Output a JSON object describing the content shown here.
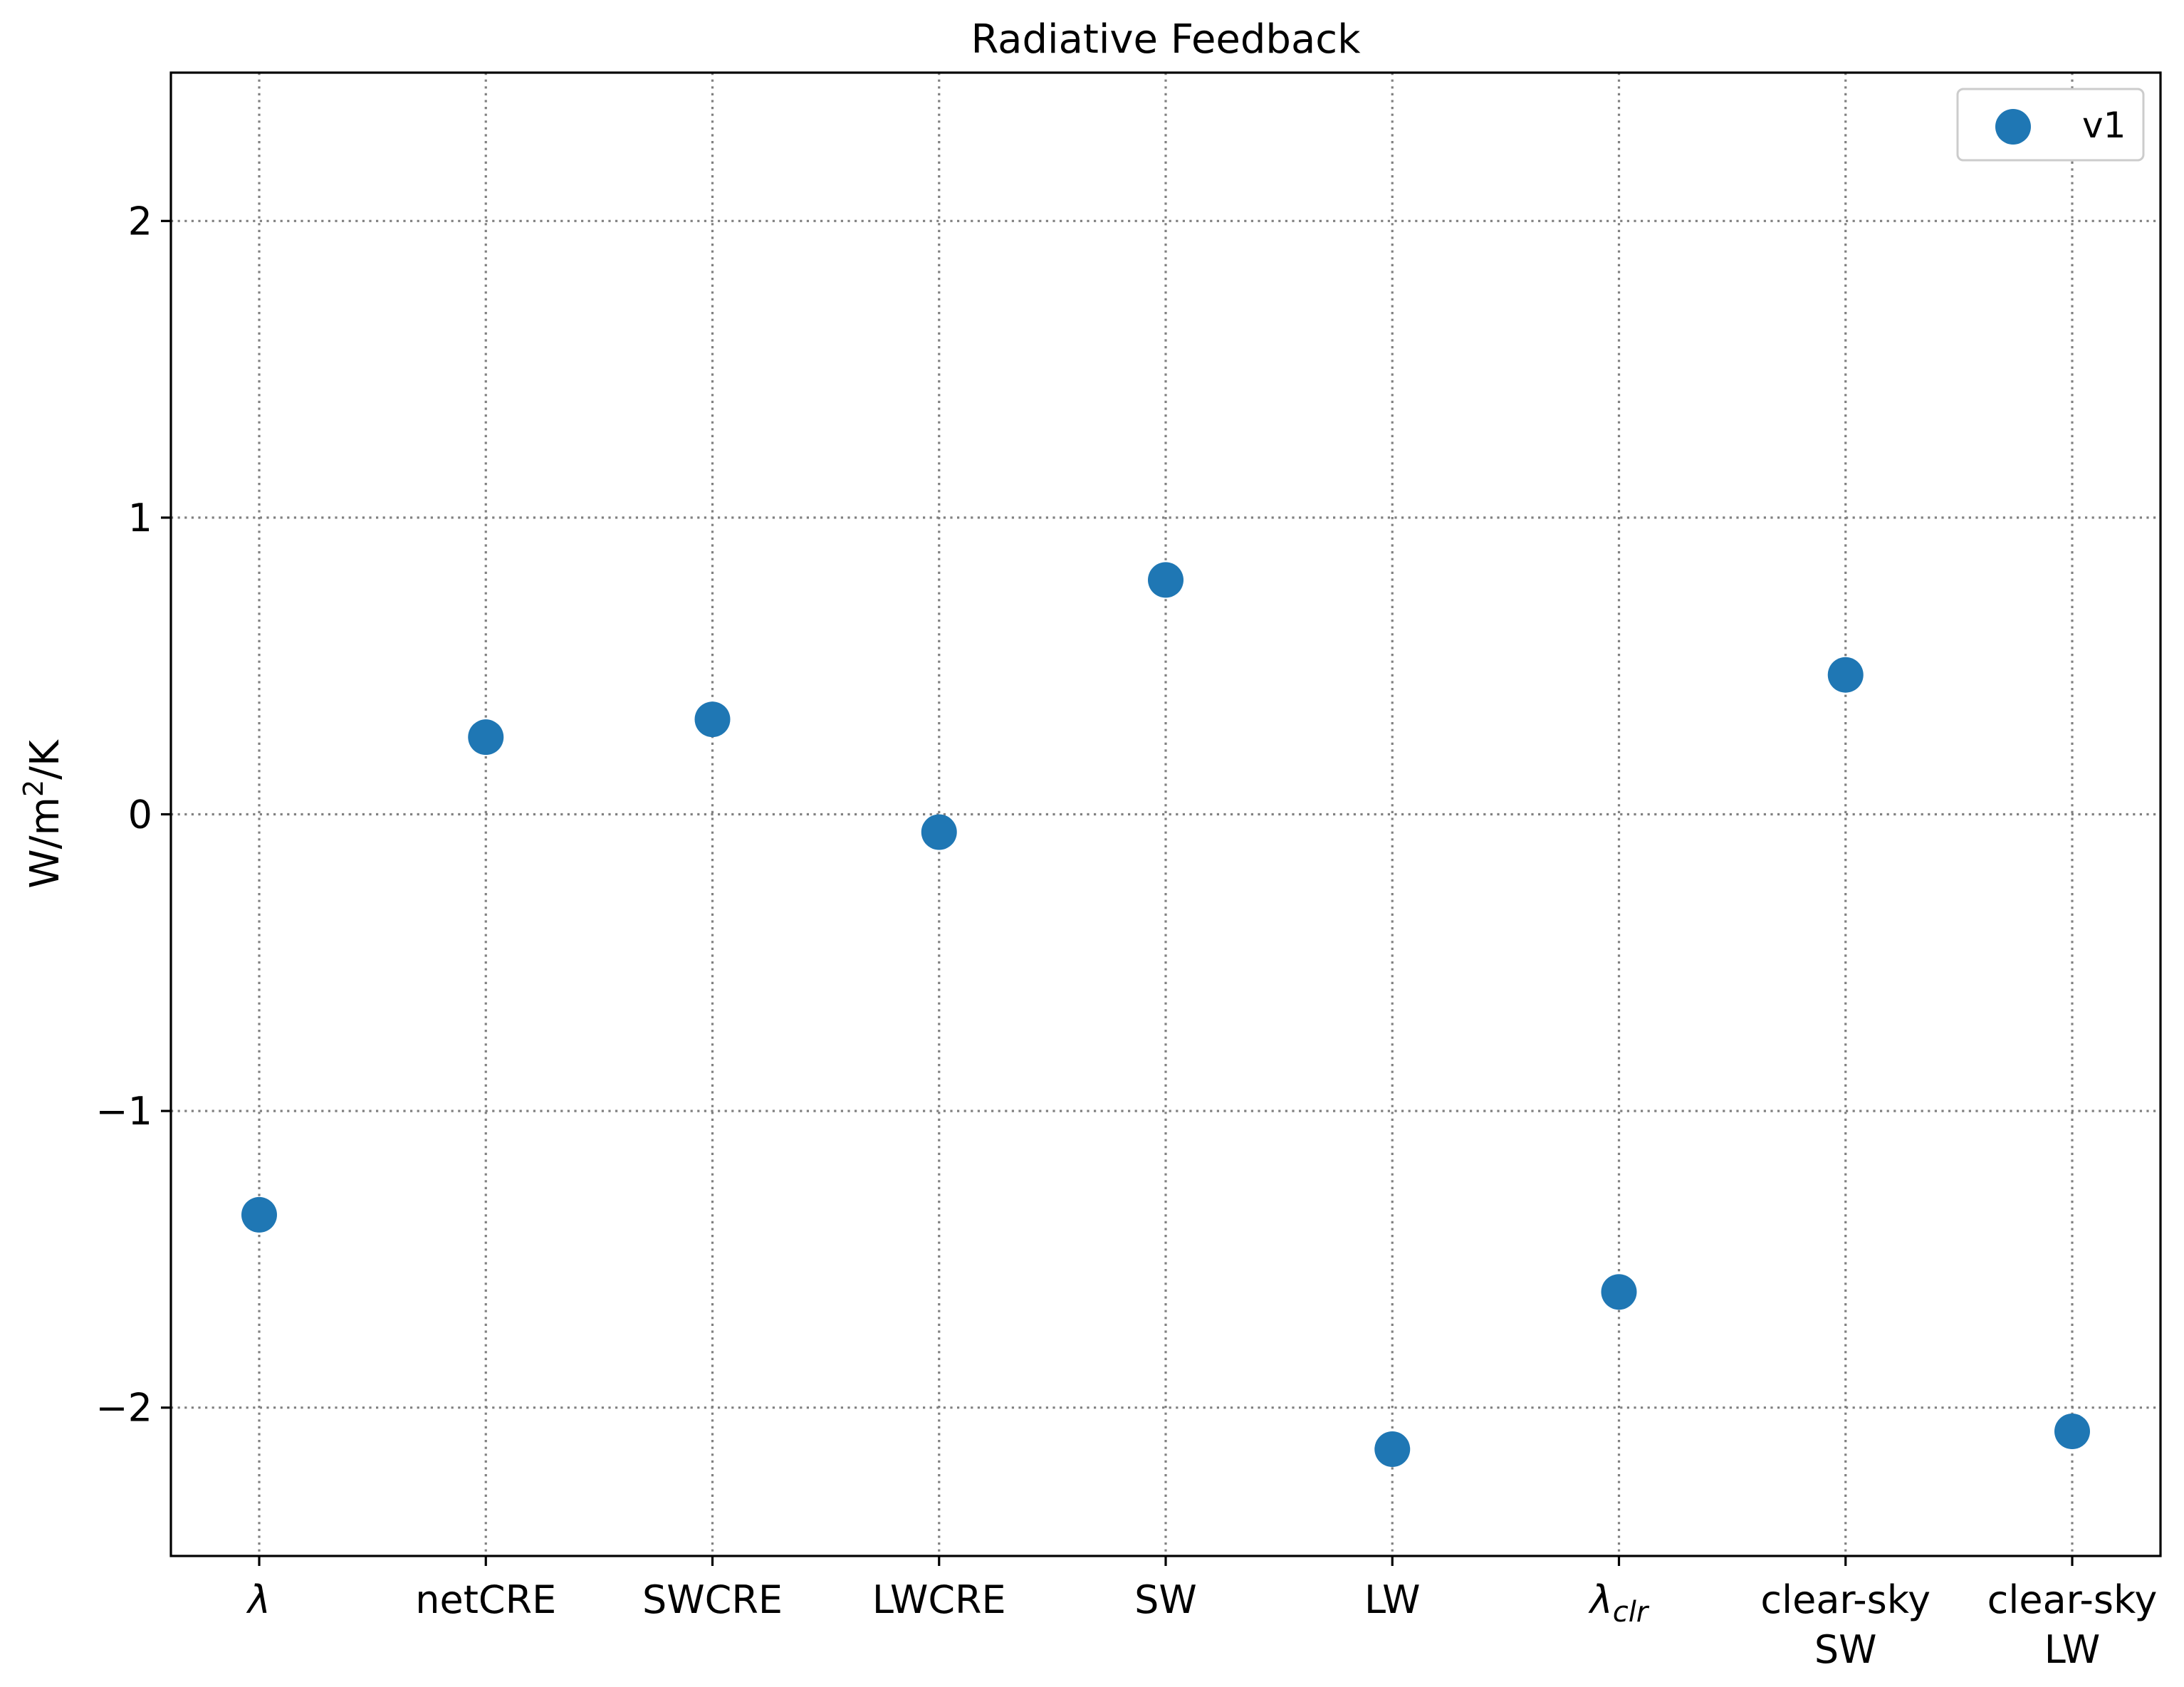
{
  "chart_data": {
    "type": "scatter",
    "title": "Radiative Feedback",
    "ylabel": "W/m²/K",
    "xlabel": "",
    "categories": [
      {
        "main": "λ",
        "sub": "",
        "line2": "",
        "italic": true
      },
      {
        "main": "netCRE",
        "sub": "",
        "line2": "",
        "italic": false
      },
      {
        "main": "SWCRE",
        "sub": "",
        "line2": "",
        "italic": false
      },
      {
        "main": "LWCRE",
        "sub": "",
        "line2": "",
        "italic": false
      },
      {
        "main": "SW",
        "sub": "",
        "line2": "",
        "italic": false
      },
      {
        "main": "LW",
        "sub": "",
        "line2": "",
        "italic": false
      },
      {
        "main": "λ",
        "sub": "clr",
        "line2": "",
        "italic": true
      },
      {
        "main": "clear-sky",
        "sub": "",
        "line2": "SW",
        "italic": false
      },
      {
        "main": "clear-sky",
        "sub": "",
        "line2": "LW",
        "italic": false
      }
    ],
    "series": [
      {
        "name": "v1",
        "color": "#1f77b4",
        "values": [
          -1.35,
          0.26,
          0.32,
          -0.06,
          0.79,
          -2.14,
          -1.61,
          0.47,
          -2.08
        ]
      }
    ],
    "ylim": [
      -2.5,
      2.5
    ],
    "yticks": [
      {
        "value": 2,
        "label": "2"
      },
      {
        "value": 1,
        "label": "1"
      },
      {
        "value": 0,
        "label": "0"
      },
      {
        "value": -1,
        "label": "−1"
      },
      {
        "value": -2,
        "label": "−2"
      }
    ],
    "grid": true,
    "grid_style": "dotted",
    "legend_position": "top-right"
  }
}
